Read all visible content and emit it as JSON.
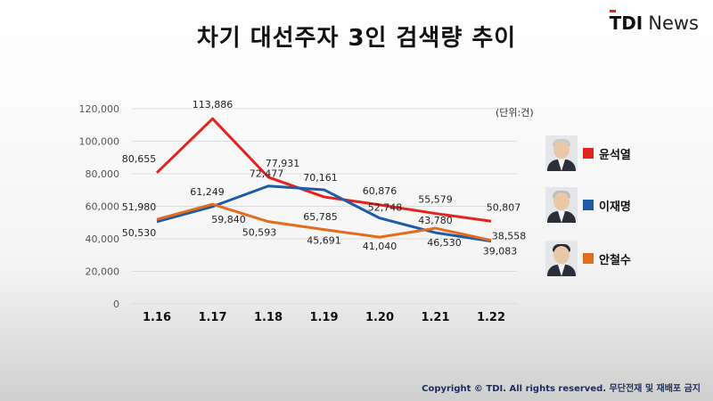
{
  "title": "차기 대선주자 3인 검색량 추이",
  "logo": {
    "mark": "TDI",
    "text": "News"
  },
  "unit_label": "(단위:건)",
  "footer": "Copyright © TDI. All rights reserved. 무단전재 및 재배포 금지",
  "chart_data": {
    "type": "line",
    "categories": [
      "1.16",
      "1.17",
      "1.18",
      "1.19",
      "1.20",
      "1.21",
      "1.22"
    ],
    "ylim": [
      0,
      120000
    ],
    "yticks": [
      "0",
      "20,000",
      "40,000",
      "60,000",
      "80,000",
      "100,000",
      "120,000"
    ],
    "ytick_values": [
      0,
      20000,
      40000,
      60000,
      80000,
      100000,
      120000
    ],
    "grid": true,
    "legend_position": "right",
    "series": [
      {
        "name": "윤석열",
        "color": "#e3231f",
        "values": [
          80655,
          113886,
          77931,
          65785,
          60876,
          55579,
          50807
        ],
        "labels": [
          "80,655",
          "113,886",
          "77,931",
          "65,785",
          "60,876",
          "55,579",
          "50,807"
        ]
      },
      {
        "name": "이재명",
        "color": "#1f5aa8",
        "values": [
          50530,
          59840,
          72477,
          70161,
          52748,
          43780,
          38558
        ],
        "labels": [
          "50,530",
          "59,840",
          "72,477",
          "70,161",
          "52,748",
          "43,780",
          "38,558"
        ]
      },
      {
        "name": "안철수",
        "color": "#e36c1d",
        "values": [
          51980,
          61249,
          50593,
          45691,
          41040,
          46530,
          39083
        ],
        "labels": [
          "51,980",
          "61,249",
          "50,593",
          "45,691",
          "41,040",
          "46,530",
          "39,083"
        ]
      }
    ]
  },
  "legend": [
    {
      "name": "윤석열",
      "color": "#e3231f",
      "avatar": "person-photo-1"
    },
    {
      "name": "이재명",
      "color": "#1f5aa8",
      "avatar": "person-photo-2"
    },
    {
      "name": "안철수",
      "color": "#e36c1d",
      "avatar": "person-photo-3"
    }
  ]
}
